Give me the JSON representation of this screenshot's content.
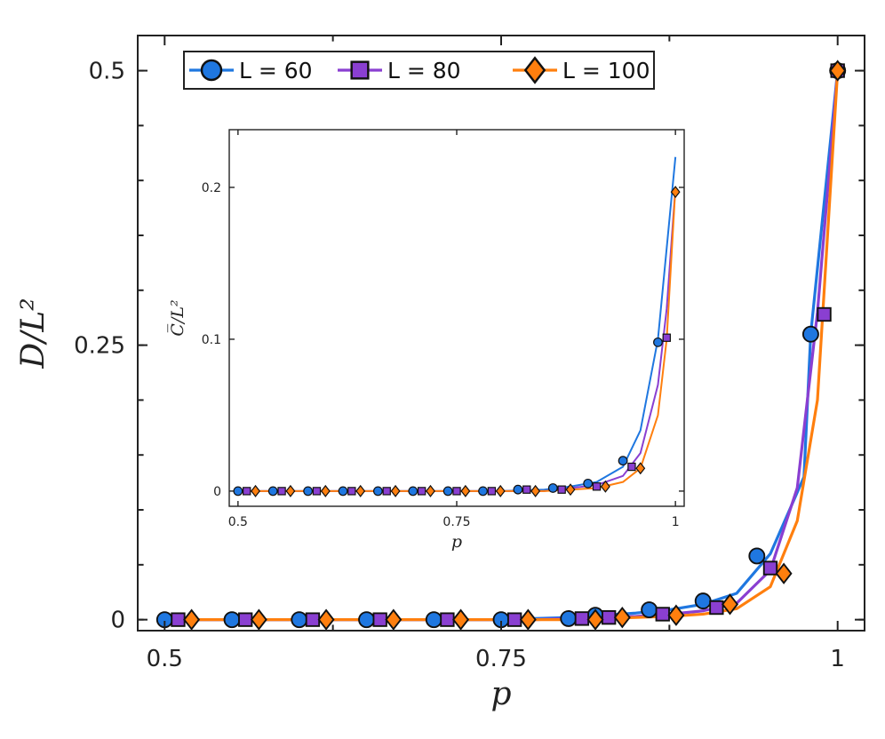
{
  "chart_data": [
    {
      "type": "line",
      "title": "",
      "xlabel": "p",
      "ylabel": "D/L²",
      "xlim": [
        0.48,
        1.02
      ],
      "ylim": [
        -0.01,
        0.532
      ],
      "xticks": [
        0.5,
        0.75,
        1
      ],
      "xtick_labels": [
        "0.5",
        "0.75",
        "1"
      ],
      "yticks": [
        0,
        0.25,
        0.5
      ],
      "ytick_labels": [
        "0",
        "0.25",
        "0.5"
      ],
      "legend": "top-left",
      "series": [
        {
          "name": "L = 60",
          "color": "#1f77e0",
          "marker": "circle",
          "x": [
            0.5,
            0.525,
            0.55,
            0.575,
            0.6,
            0.625,
            0.65,
            0.675,
            0.7,
            0.725,
            0.75,
            0.775,
            0.8,
            0.825,
            0.85,
            0.875,
            0.9,
            0.925,
            0.95,
            0.975,
            0.98,
            0.99,
            1.0
          ],
          "y": [
            0.0,
            0.0,
            0.0,
            0.0,
            0.0,
            0.0,
            0.0,
            0.0,
            0.0,
            0.0,
            0.0,
            0.001,
            0.002,
            0.004,
            0.006,
            0.009,
            0.014,
            0.024,
            0.06,
            0.13,
            0.26,
            0.38,
            0.5
          ],
          "markers_x": [
            0.5,
            0.55,
            0.6,
            0.65,
            0.7,
            0.75,
            0.8,
            0.82,
            0.86,
            0.9,
            0.94,
            0.98,
            1.0
          ],
          "markers_y": [
            0.0,
            0.0,
            0.0,
            0.0,
            0.0,
            0.0,
            0.001,
            0.004,
            0.009,
            0.017,
            0.058,
            0.26,
            0.5
          ]
        },
        {
          "name": "L = 80",
          "color": "#8a3fd1",
          "marker": "square",
          "x": [
            0.5,
            0.525,
            0.55,
            0.575,
            0.6,
            0.625,
            0.65,
            0.675,
            0.7,
            0.725,
            0.75,
            0.775,
            0.8,
            0.825,
            0.85,
            0.875,
            0.9,
            0.925,
            0.95,
            0.97,
            0.985,
            1.0
          ],
          "y": [
            0.0,
            0.0,
            0.0,
            0.0,
            0.0,
            0.0,
            0.0,
            0.0,
            0.0,
            0.0,
            0.0,
            0.0,
            0.001,
            0.002,
            0.003,
            0.005,
            0.008,
            0.015,
            0.045,
            0.12,
            0.28,
            0.5
          ],
          "markers_x": [
            0.51,
            0.56,
            0.61,
            0.66,
            0.71,
            0.76,
            0.81,
            0.83,
            0.87,
            0.91,
            0.95,
            0.99,
            1.0
          ],
          "markers_y": [
            0.0,
            0.0,
            0.0,
            0.0,
            0.0,
            0.0,
            0.001,
            0.002,
            0.005,
            0.011,
            0.047,
            0.278,
            0.5
          ]
        },
        {
          "name": "L = 100",
          "color": "#ff7f0e",
          "marker": "diamond",
          "x": [
            0.5,
            0.525,
            0.55,
            0.575,
            0.6,
            0.625,
            0.65,
            0.675,
            0.7,
            0.725,
            0.75,
            0.775,
            0.8,
            0.825,
            0.85,
            0.875,
            0.9,
            0.925,
            0.95,
            0.97,
            0.985,
            1.0
          ],
          "y": [
            0.0,
            0.0,
            0.0,
            0.0,
            0.0,
            0.0,
            0.0,
            0.0,
            0.0,
            0.0,
            0.0,
            0.0,
            0.0,
            0.001,
            0.002,
            0.003,
            0.005,
            0.01,
            0.03,
            0.09,
            0.2,
            0.5
          ],
          "markers_x": [
            0.52,
            0.57,
            0.62,
            0.67,
            0.72,
            0.77,
            0.82,
            0.84,
            0.88,
            0.92,
            0.96,
            1.0
          ],
          "markers_y": [
            0.0,
            0.0,
            0.0,
            0.0,
            0.0,
            0.0,
            0.0,
            0.002,
            0.004,
            0.014,
            0.042,
            0.5
          ]
        }
      ]
    },
    {
      "type": "line",
      "title": "",
      "xlabel": "p",
      "ylabel": "C̅/L²",
      "xlim": [
        0.49,
        1.01
      ],
      "ylim": [
        -0.01,
        0.238
      ],
      "xticks": [
        0.5,
        0.75,
        1
      ],
      "xtick_labels": [
        "0.5",
        "0.75",
        "1"
      ],
      "yticks": [
        0,
        0.1,
        0.2
      ],
      "ytick_labels": [
        "0",
        "0.1",
        "0.2"
      ],
      "series": [
        {
          "color": "#1f77e0",
          "marker": "circle",
          "x": [
            0.5,
            0.55,
            0.6,
            0.65,
            0.7,
            0.75,
            0.8,
            0.85,
            0.88,
            0.91,
            0.94,
            0.96,
            0.98,
            0.99,
            1.0
          ],
          "y": [
            0.0,
            0.0,
            0.0,
            0.0,
            0.0,
            0.0,
            0.0,
            0.001,
            0.003,
            0.006,
            0.016,
            0.04,
            0.1,
            0.16,
            0.22
          ],
          "markers_x": [
            0.5,
            0.54,
            0.58,
            0.62,
            0.66,
            0.7,
            0.74,
            0.78,
            0.82,
            0.86,
            0.9,
            0.94,
            0.98
          ],
          "markers_y": [
            0.0,
            0.0,
            0.0,
            0.0,
            0.0,
            0.0,
            0.0,
            0.0,
            0.001,
            0.002,
            0.005,
            0.02,
            0.098
          ]
        },
        {
          "color": "#8a3fd1",
          "marker": "square",
          "x": [
            0.5,
            0.55,
            0.6,
            0.65,
            0.7,
            0.75,
            0.8,
            0.85,
            0.88,
            0.91,
            0.94,
            0.96,
            0.98,
            0.99,
            1.0
          ],
          "y": [
            0.0,
            0.0,
            0.0,
            0.0,
            0.0,
            0.0,
            0.0,
            0.0,
            0.002,
            0.004,
            0.01,
            0.025,
            0.07,
            0.12,
            0.2
          ],
          "markers_x": [
            0.51,
            0.55,
            0.59,
            0.63,
            0.67,
            0.71,
            0.75,
            0.79,
            0.83,
            0.87,
            0.91,
            0.95,
            0.99
          ],
          "markers_y": [
            0.0,
            0.0,
            0.0,
            0.0,
            0.0,
            0.0,
            0.0,
            0.0,
            0.001,
            0.001,
            0.003,
            0.016,
            0.101
          ]
        },
        {
          "color": "#ff7f0e",
          "marker": "diamond",
          "x": [
            0.5,
            0.55,
            0.6,
            0.65,
            0.7,
            0.75,
            0.8,
            0.85,
            0.88,
            0.91,
            0.94,
            0.96,
            0.98,
            0.99,
            1.0
          ],
          "y": [
            0.0,
            0.0,
            0.0,
            0.0,
            0.0,
            0.0,
            0.0,
            0.0,
            0.001,
            0.002,
            0.006,
            0.015,
            0.05,
            0.1,
            0.2
          ],
          "markers_x": [
            0.52,
            0.56,
            0.6,
            0.64,
            0.68,
            0.72,
            0.76,
            0.8,
            0.84,
            0.88,
            0.92,
            0.96,
            1.0
          ],
          "markers_y": [
            0.0,
            0.0,
            0.0,
            0.0,
            0.0,
            0.0,
            0.0,
            0.0,
            0.0,
            0.001,
            0.003,
            0.015,
            0.197
          ]
        }
      ]
    }
  ]
}
